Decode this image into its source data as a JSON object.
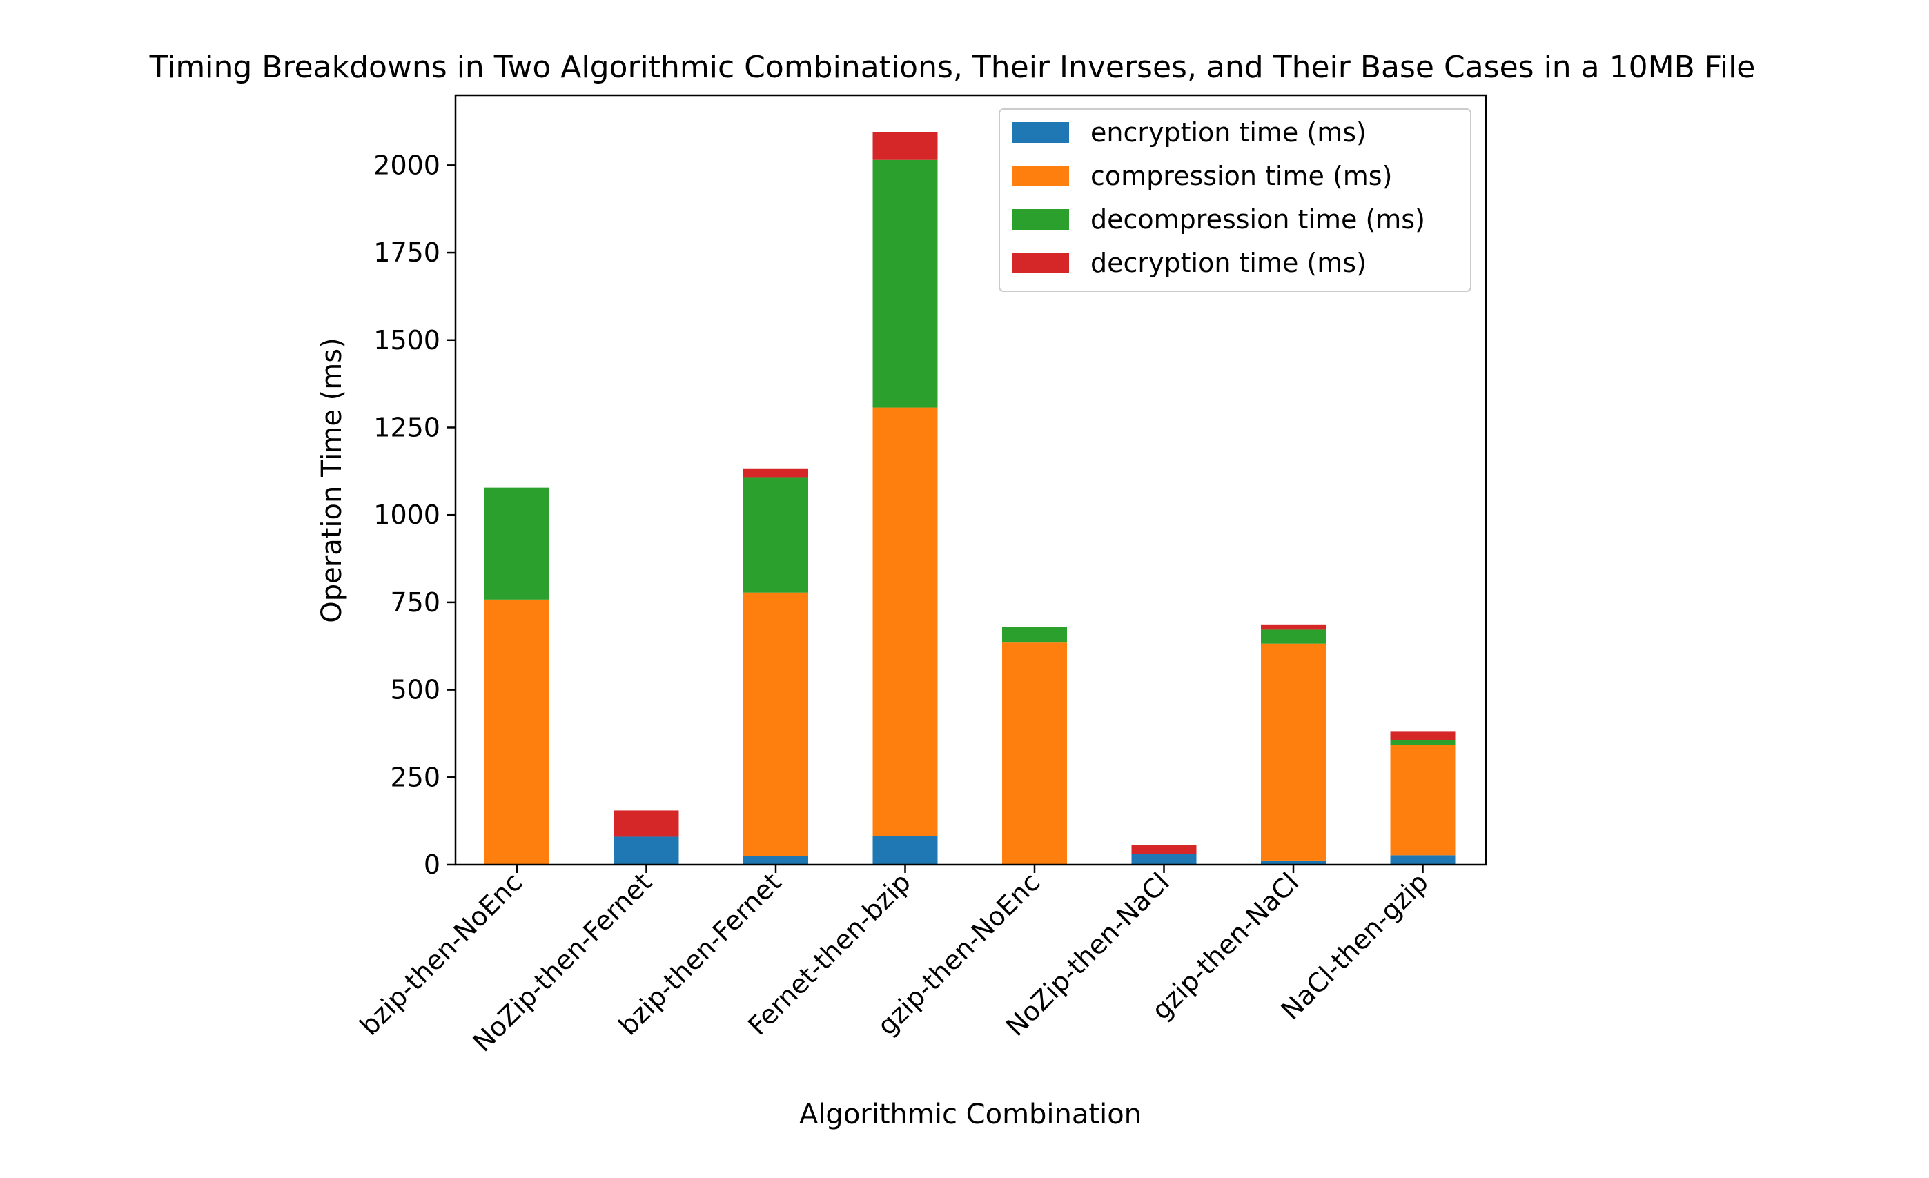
{
  "chart_data": {
    "type": "bar",
    "stacked": true,
    "title": "Timing Breakdowns in Two Algorithmic Combinations, Their Inverses, and Their Base Cases in a 10MB File",
    "xlabel": "Algorithmic Combination",
    "ylabel": "Operation Time (ms)",
    "ylim": [
      0,
      2200
    ],
    "yticks": [
      0,
      250,
      500,
      750,
      1000,
      1250,
      1500,
      1750,
      2000
    ],
    "grid": false,
    "legend_position": "top-right",
    "categories": [
      "bzip-then-NoEnc",
      "NoZip-then-Fernet",
      "bzip-then-Fernet",
      "Fernet-then-bzip",
      "gzip-then-NoEnc",
      "NoZip-then-NaCl",
      "gzip-then-NaCl",
      "NaCl-then-gzip"
    ],
    "series": [
      {
        "name": "encryption time (ms)",
        "color": "#1f77b4",
        "values": [
          0,
          80,
          25,
          82,
          0,
          30,
          12,
          27
        ]
      },
      {
        "name": "compression time (ms)",
        "color": "#ff7f0e",
        "values": [
          758,
          0,
          753,
          1225,
          635,
          0,
          620,
          315
        ]
      },
      {
        "name": "decompression time (ms)",
        "color": "#2ca02c",
        "values": [
          320,
          0,
          330,
          708,
          45,
          0,
          40,
          15
        ]
      },
      {
        "name": "decryption time (ms)",
        "color": "#d62728",
        "values": [
          0,
          75,
          25,
          80,
          0,
          27,
          15,
          25
        ]
      }
    ]
  }
}
